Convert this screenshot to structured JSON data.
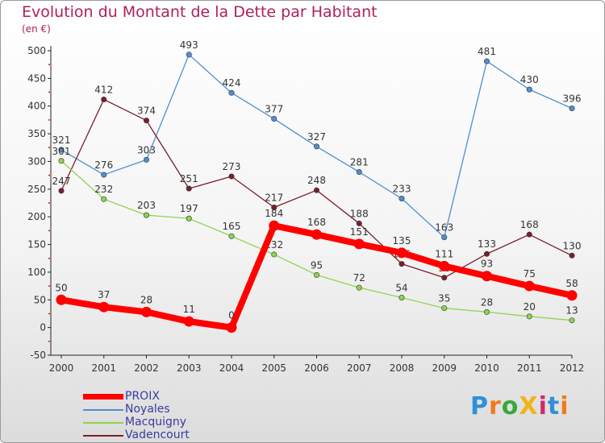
{
  "title": "Evolution du Montant de la Dette par Habitant",
  "unit_label": "(en €)",
  "logo_text": "ProXiti",
  "chart_data": {
    "type": "line",
    "title": "Evolution du Montant de la Dette par Habitant",
    "ylabel": "(en €)",
    "xlabel": "",
    "ylim": [
      -50,
      500
    ],
    "yticks": [
      -50,
      0,
      50,
      100,
      150,
      200,
      250,
      300,
      350,
      400,
      450,
      500
    ],
    "x": [
      "2000",
      "2001",
      "2002",
      "2003",
      "2004",
      "2005",
      "2006",
      "2007",
      "2008",
      "2009",
      "2010",
      "2011",
      "2012"
    ],
    "grid": false,
    "legend_position": "bottom-left",
    "series": [
      {
        "name": "PROIX",
        "color": "#ff0000",
        "values": [
          50,
          37,
          28,
          11,
          0,
          184,
          168,
          151,
          135,
          111,
          93,
          75,
          58
        ]
      },
      {
        "name": "Noyales",
        "color": "#4f8fd1",
        "values": [
          321,
          276,
          303,
          493,
          424,
          377,
          327,
          281,
          233,
          163,
          481,
          430,
          396
        ]
      },
      {
        "name": "Macquigny",
        "color": "#8ed44f",
        "values": [
          301,
          232,
          203,
          197,
          165,
          132,
          95,
          72,
          54,
          35,
          28,
          20,
          13
        ]
      },
      {
        "name": "Vadencourt",
        "color": "#7a1e2c",
        "values": [
          247,
          412,
          374,
          251,
          273,
          217,
          248,
          188,
          115,
          90,
          133,
          168,
          130
        ]
      }
    ]
  }
}
